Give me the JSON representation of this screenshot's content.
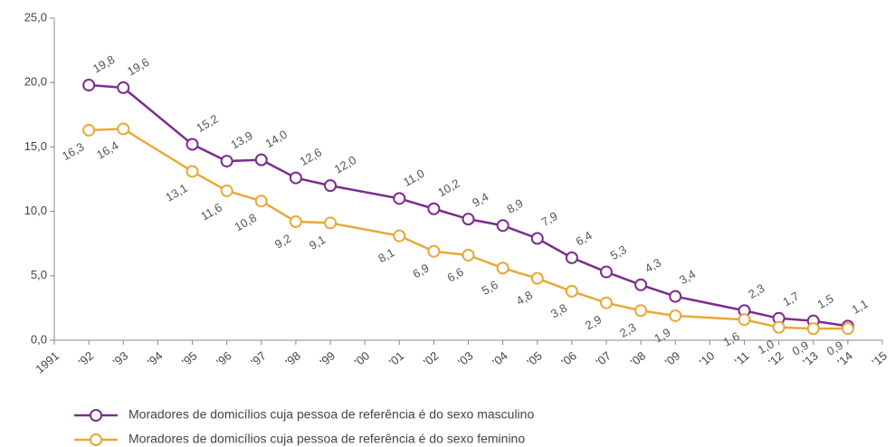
{
  "chart_data": {
    "type": "line",
    "xlim": [
      1991,
      2015
    ],
    "xticks": [
      {
        "value": 1991,
        "label": "1991"
      },
      {
        "value": 1992,
        "label": "'92"
      },
      {
        "value": 1993,
        "label": "'93"
      },
      {
        "value": 1994,
        "label": "'94"
      },
      {
        "value": 1995,
        "label": "'95"
      },
      {
        "value": 1996,
        "label": "'96"
      },
      {
        "value": 1997,
        "label": "'97"
      },
      {
        "value": 1998,
        "label": "'98"
      },
      {
        "value": 1999,
        "label": "'99"
      },
      {
        "value": 2000,
        "label": "'00"
      },
      {
        "value": 2001,
        "label": "'01"
      },
      {
        "value": 2002,
        "label": "'02"
      },
      {
        "value": 2003,
        "label": "'03"
      },
      {
        "value": 2004,
        "label": "'04"
      },
      {
        "value": 2005,
        "label": "'05"
      },
      {
        "value": 2006,
        "label": "'06"
      },
      {
        "value": 2007,
        "label": "'07"
      },
      {
        "value": 2008,
        "label": "'08"
      },
      {
        "value": 2009,
        "label": "'09"
      },
      {
        "value": 2010,
        "label": "'10"
      },
      {
        "value": 2011,
        "label": "'11"
      },
      {
        "value": 2012,
        "label": "'12"
      },
      {
        "value": 2013,
        "label": "'13"
      },
      {
        "value": 2014,
        "label": "'14"
      },
      {
        "value": 2015,
        "label": "'15"
      }
    ],
    "ylim": [
      0,
      25
    ],
    "yticks": [
      {
        "value": 0,
        "label": "0,0"
      },
      {
        "value": 5,
        "label": "5,0"
      },
      {
        "value": 10,
        "label": "10,0"
      },
      {
        "value": 15,
        "label": "15,0"
      },
      {
        "value": 20,
        "label": "20,0"
      },
      {
        "value": 25,
        "label": "25,0"
      }
    ],
    "x": [
      1992,
      1993,
      1995,
      1996,
      1997,
      1998,
      1999,
      2001,
      2002,
      2003,
      2004,
      2005,
      2006,
      2007,
      2008,
      2009,
      2011,
      2012,
      2013,
      2014
    ],
    "series": [
      {
        "name": "Moradores de domicílios cuja pessoa de referência é do sexo masculino",
        "color": "#7b2d8e",
        "values": [
          19.8,
          19.6,
          15.2,
          13.9,
          14.0,
          12.6,
          12.0,
          11.0,
          10.2,
          9.4,
          8.9,
          7.9,
          6.4,
          5.3,
          4.3,
          3.4,
          2.3,
          1.7,
          1.5,
          1.1
        ],
        "value_labels": [
          "19,8",
          "19,6",
          "15,2",
          "13,9",
          "14,0",
          "12,6",
          "12,0",
          "11,0",
          "10,2",
          "9,4",
          "8,9",
          "7,9",
          "6,4",
          "5,3",
          "4,3",
          "3,4",
          "2,3",
          "1,7",
          "1,5",
          "1,1"
        ]
      },
      {
        "name": "Moradores de domicílios cuja pessoa de referência é do sexo feminino",
        "color": "#e8a838",
        "values": [
          16.3,
          16.4,
          13.1,
          11.6,
          10.8,
          9.2,
          9.1,
          8.1,
          6.9,
          6.6,
          5.6,
          4.8,
          3.8,
          2.9,
          2.3,
          1.9,
          1.6,
          1.0,
          0.9,
          0.9
        ],
        "value_labels": [
          "16,3",
          "16,4",
          "13,1",
          "11,6",
          "10,8",
          "9,2",
          "9,1",
          "8,1",
          "6,9",
          "6,6",
          "5,6",
          "4,8",
          "3,8",
          "2,9",
          "2,3",
          "1,9",
          "1,6",
          "1,0",
          "0,9",
          "0,9"
        ]
      }
    ]
  }
}
